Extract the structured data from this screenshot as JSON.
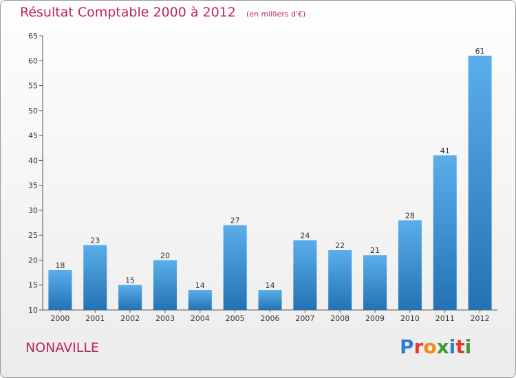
{
  "header": {
    "title": "Résultat Comptable 2000 à 2012",
    "subtitle": "(en milliers d'€)"
  },
  "commune": "NONAVILLE",
  "logo": {
    "text": "Proxiti",
    "letters": [
      {
        "ch": "P",
        "color": "#2e7fd0"
      },
      {
        "ch": "r",
        "color": "#e23b2e"
      },
      {
        "ch": "o",
        "color": "#f28c1c"
      },
      {
        "ch": "x",
        "color": "#3a9a3c"
      },
      {
        "ch": "i",
        "color": "#2e7fd0"
      },
      {
        "ch": "t",
        "color": "#e23b2e"
      },
      {
        "ch": "i",
        "color": "#3a9a3c"
      }
    ]
  },
  "colors": {
    "title": "#c0245a",
    "bar_light": "#5aaeea",
    "bar_dark": "#2472b4",
    "axis": "#555555"
  },
  "chart_data": {
    "type": "bar",
    "title": "Résultat Comptable 2000 à 2012",
    "subtitle": "(en milliers d'€)",
    "categories": [
      "2000",
      "2001",
      "2002",
      "2003",
      "2004",
      "2005",
      "2006",
      "2007",
      "2008",
      "2009",
      "2010",
      "2011",
      "2012"
    ],
    "values": [
      18,
      23,
      15,
      20,
      14,
      27,
      14,
      24,
      22,
      21,
      28,
      41,
      61
    ],
    "ylim": [
      10,
      65
    ],
    "yticks": [
      10,
      15,
      20,
      25,
      30,
      35,
      40,
      45,
      50,
      55,
      60,
      65
    ],
    "grid": false,
    "legend": "none"
  }
}
